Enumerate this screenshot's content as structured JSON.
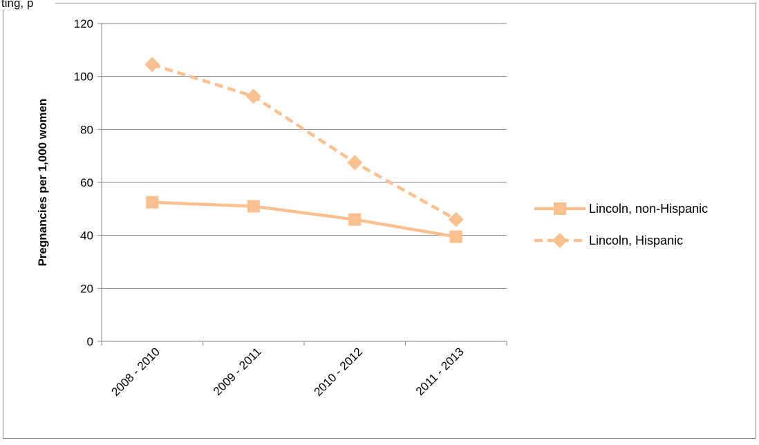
{
  "top_cut_text": "ting, p",
  "chart_data": {
    "type": "line",
    "title": "",
    "xlabel": "",
    "ylabel": "Pregnancies per 1,000 women",
    "categories": [
      "2008 - 2010",
      "2009 - 2011",
      "2010 - 2012",
      "2011 - 2013"
    ],
    "ylim": [
      0,
      120
    ],
    "yticks": [
      0,
      20,
      40,
      60,
      80,
      100,
      120
    ],
    "grid": true,
    "legend_position": "right",
    "series": [
      {
        "name": "Lincoln, non-Hispanic",
        "values": [
          52.5,
          51,
          46,
          39.5
        ],
        "color": "#FAC08F",
        "line_style": "solid",
        "marker": "square"
      },
      {
        "name": "Lincoln, Hispanic",
        "values": [
          104.5,
          92.5,
          67.5,
          46
        ],
        "color": "#FAC08F",
        "line_style": "dashed",
        "marker": "diamond"
      }
    ]
  }
}
